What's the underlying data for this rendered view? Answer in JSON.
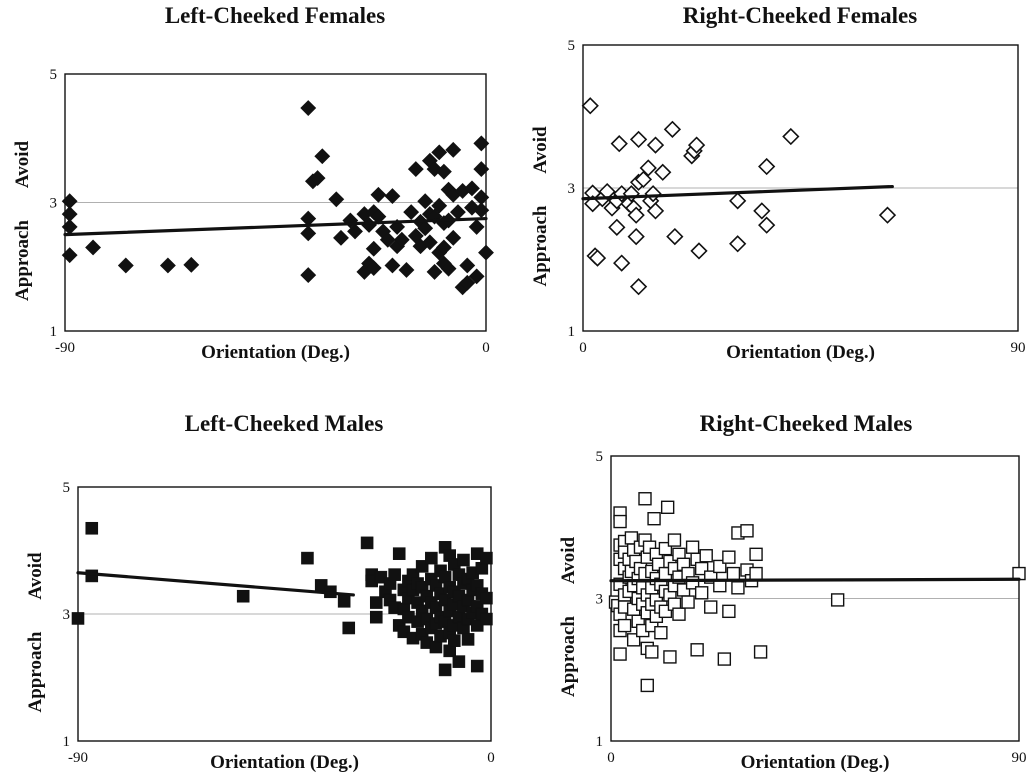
{
  "chart_data": [
    {
      "id": "lcf",
      "type": "scatter",
      "title": "Left-Cheeked Females",
      "xlabel": "Orientation (Deg.)",
      "ylabel_top": "Avoid",
      "ylabel_bottom": "Approach",
      "xlim": [
        -90,
        0
      ],
      "ylim": [
        1,
        5
      ],
      "x_ticks": [
        "-90",
        "0"
      ],
      "y_ticks": [
        "1",
        "3",
        "5"
      ],
      "gridlines_y": [
        3
      ],
      "marker": "diamond-filled",
      "trendline": {
        "x": [
          -90,
          0
        ],
        "y": [
          2.5,
          2.75
        ]
      },
      "points": [
        [
          -89,
          3.02
        ],
        [
          -89,
          2.82
        ],
        [
          -89,
          2.62
        ],
        [
          -89,
          2.18
        ],
        [
          -84,
          2.3
        ],
        [
          -77,
          2.02
        ],
        [
          -68,
          2.02
        ],
        [
          -63,
          2.03
        ],
        [
          -38,
          4.47
        ],
        [
          -38,
          2.75
        ],
        [
          -38,
          2.52
        ],
        [
          -38,
          1.87
        ],
        [
          -37,
          3.33
        ],
        [
          -36,
          3.38
        ],
        [
          -35,
          3.72
        ],
        [
          -32,
          3.05
        ],
        [
          -31,
          2.45
        ],
        [
          -29,
          2.72
        ],
        [
          -28,
          2.55
        ],
        [
          -26,
          1.92
        ],
        [
          -26,
          2.82
        ],
        [
          -25,
          2.05
        ],
        [
          -25,
          2.65
        ],
        [
          -24,
          2.85
        ],
        [
          -24,
          2.28
        ],
        [
          -24,
          1.98
        ],
        [
          -23,
          3.12
        ],
        [
          -23,
          2.78
        ],
        [
          -22,
          2.55
        ],
        [
          -21,
          2.42
        ],
        [
          -20,
          3.1
        ],
        [
          -20,
          2.02
        ],
        [
          -19,
          2.62
        ],
        [
          -19,
          2.32
        ],
        [
          -18,
          2.42
        ],
        [
          -17,
          1.95
        ],
        [
          -16,
          2.85
        ],
        [
          -15,
          3.52
        ],
        [
          -15,
          2.48
        ],
        [
          -14,
          2.32
        ],
        [
          -14,
          2.7
        ],
        [
          -13,
          2.6
        ],
        [
          -13,
          3.02
        ],
        [
          -12,
          2.38
        ],
        [
          -12,
          2.82
        ],
        [
          -12,
          3.65
        ],
        [
          -11,
          1.92
        ],
        [
          -11,
          2.78
        ],
        [
          -11,
          3.52
        ],
        [
          -10,
          2.22
        ],
        [
          -10,
          2.95
        ],
        [
          -10,
          3.78
        ],
        [
          -9,
          3.48
        ],
        [
          -9,
          2.68
        ],
        [
          -9,
          2.3
        ],
        [
          -9,
          2.05
        ],
        [
          -8,
          3.2
        ],
        [
          -8,
          2.72
        ],
        [
          -8,
          1.97
        ],
        [
          -7,
          3.82
        ],
        [
          -7,
          3.12
        ],
        [
          -7,
          2.45
        ],
        [
          -6,
          2.85
        ],
        [
          -5,
          1.68
        ],
        [
          -5,
          3.18
        ],
        [
          -4,
          1.75
        ],
        [
          -4,
          2.02
        ],
        [
          -3,
          2.92
        ],
        [
          -3,
          3.22
        ],
        [
          -2,
          1.85
        ],
        [
          -2,
          2.62
        ],
        [
          -1,
          3.52
        ],
        [
          -1,
          3.08
        ],
        [
          -1,
          3.92
        ],
        [
          -1,
          2.88
        ],
        [
          0,
          2.22
        ]
      ]
    },
    {
      "id": "rcf",
      "type": "scatter",
      "title": "Right-Cheeked Females",
      "xlabel": "Orientation (Deg.)",
      "ylabel_top": "Avoid",
      "ylabel_bottom": "Approach",
      "xlim": [
        0,
        90
      ],
      "ylim": [
        1,
        5
      ],
      "x_ticks": [
        "0",
        "90"
      ],
      "y_ticks": [
        "1",
        "3",
        "5"
      ],
      "gridlines_y": [
        3
      ],
      "marker": "diamond-open",
      "trendline": {
        "x": [
          0,
          64
        ],
        "y": [
          2.85,
          3.02
        ]
      },
      "points": [
        [
          1.5,
          4.15
        ],
        [
          2,
          2.93
        ],
        [
          2,
          2.78
        ],
        [
          2.5,
          2.05
        ],
        [
          3,
          2.02
        ],
        [
          4,
          2.85
        ],
        [
          5,
          2.95
        ],
        [
          6,
          2.72
        ],
        [
          7,
          2.45
        ],
        [
          7,
          2.82
        ],
        [
          7.5,
          3.62
        ],
        [
          8,
          2.92
        ],
        [
          8,
          1.95
        ],
        [
          9.5,
          2.78
        ],
        [
          10,
          2.92
        ],
        [
          10.5,
          2.72
        ],
        [
          11,
          2.62
        ],
        [
          11,
          2.32
        ],
        [
          11.5,
          3.68
        ],
        [
          11.5,
          3.08
        ],
        [
          11.5,
          1.62
        ],
        [
          12.5,
          3.12
        ],
        [
          13.5,
          3.28
        ],
        [
          14,
          2.82
        ],
        [
          14.5,
          2.92
        ],
        [
          15,
          2.68
        ],
        [
          15,
          3.6
        ],
        [
          16.5,
          3.22
        ],
        [
          18.5,
          3.82
        ],
        [
          19,
          2.32
        ],
        [
          22.5,
          3.45
        ],
        [
          23,
          3.52
        ],
        [
          23.5,
          3.6
        ],
        [
          24,
          2.12
        ],
        [
          32,
          2.82
        ],
        [
          32,
          2.22
        ],
        [
          37,
          2.68
        ],
        [
          38,
          2.48
        ],
        [
          38,
          3.3
        ],
        [
          43,
          3.72
        ],
        [
          63,
          2.62
        ]
      ]
    },
    {
      "id": "lcm",
      "type": "scatter",
      "title": "Left-Cheeked Males",
      "xlabel": "Orientation (Deg.)",
      "ylabel_top": "Avoid",
      "ylabel_bottom": "Approach",
      "xlim": [
        -90,
        0
      ],
      "ylim": [
        1,
        5
      ],
      "x_ticks": [
        "-90",
        "0"
      ],
      "y_ticks": [
        "1",
        "3",
        "5"
      ],
      "gridlines_y": [
        3
      ],
      "marker": "square-filled",
      "trendline": {
        "x": [
          -90,
          -30
        ],
        "y": [
          3.65,
          3.3
        ]
      },
      "points": [
        [
          -90,
          2.93
        ],
        [
          -87,
          4.35
        ],
        [
          -87,
          3.6
        ],
        [
          -54,
          3.28
        ],
        [
          -40,
          3.88
        ],
        [
          -37,
          3.45
        ],
        [
          -35,
          3.35
        ],
        [
          -32,
          3.2
        ],
        [
          -31,
          2.78
        ],
        [
          -27,
          4.12
        ],
        [
          -26,
          3.62
        ],
        [
          -26,
          3.52
        ],
        [
          -25,
          3.18
        ],
        [
          -25,
          2.95
        ],
        [
          -24,
          3.58
        ],
        [
          -23,
          3.35
        ],
        [
          -22,
          3.48
        ],
        [
          -22,
          3.22
        ],
        [
          -21,
          3.62
        ],
        [
          -21,
          3.1
        ],
        [
          -20,
          3.95
        ],
        [
          -20,
          2.82
        ],
        [
          -19,
          3.38
        ],
        [
          -19,
          3.08
        ],
        [
          -19,
          2.72
        ],
        [
          -18,
          3.52
        ],
        [
          -18,
          3.25
        ],
        [
          -18,
          2.95
        ],
        [
          -17,
          3.62
        ],
        [
          -17,
          3.38
        ],
        [
          -17,
          2.62
        ],
        [
          -16,
          3.48
        ],
        [
          -16,
          3.18
        ],
        [
          -16,
          2.88
        ],
        [
          -15,
          3.75
        ],
        [
          -15,
          3.42
        ],
        [
          -15,
          3.05
        ],
        [
          -15,
          2.68
        ],
        [
          -14,
          3.28
        ],
        [
          -14,
          2.92
        ],
        [
          -14,
          2.55
        ],
        [
          -13,
          3.88
        ],
        [
          -13,
          3.55
        ],
        [
          -13,
          3.18
        ],
        [
          -13,
          2.78
        ],
        [
          -12,
          3.45
        ],
        [
          -12,
          3.1
        ],
        [
          -12,
          2.85
        ],
        [
          -12,
          2.48
        ],
        [
          -11,
          3.68
        ],
        [
          -11,
          3.32
        ],
        [
          -11,
          2.95
        ],
        [
          -11,
          2.65
        ],
        [
          -10,
          4.05
        ],
        [
          -10,
          3.58
        ],
        [
          -10,
          3.22
        ],
        [
          -10,
          2.88
        ],
        [
          -10,
          2.12
        ],
        [
          -9,
          3.92
        ],
        [
          -9,
          3.42
        ],
        [
          -9,
          3.05
        ],
        [
          -9,
          2.7
        ],
        [
          -9,
          2.42
        ],
        [
          -8,
          3.78
        ],
        [
          -8,
          3.35
        ],
        [
          -8,
          3.15
        ],
        [
          -8,
          2.82
        ],
        [
          -8,
          2.58
        ],
        [
          -7,
          3.62
        ],
        [
          -7,
          3.28
        ],
        [
          -7,
          2.95
        ],
        [
          -7,
          2.25
        ],
        [
          -6,
          3.85
        ],
        [
          -6,
          3.48
        ],
        [
          -6,
          3.12
        ],
        [
          -6,
          2.78
        ],
        [
          -5,
          3.55
        ],
        [
          -5,
          3.22
        ],
        [
          -5,
          2.92
        ],
        [
          -5,
          2.6
        ],
        [
          -4,
          3.65
        ],
        [
          -4,
          3.38
        ],
        [
          -4,
          3.02
        ],
        [
          -3,
          3.95
        ],
        [
          -3,
          3.45
        ],
        [
          -3,
          3.12
        ],
        [
          -3,
          2.82
        ],
        [
          -3,
          2.18
        ],
        [
          -2,
          3.72
        ],
        [
          -2,
          3.32
        ],
        [
          -2,
          3.0
        ],
        [
          -1,
          3.88
        ],
        [
          -1,
          3.25
        ],
        [
          -1,
          2.92
        ]
      ]
    },
    {
      "id": "rcm",
      "type": "scatter",
      "title": "Right-Cheeked Males",
      "xlabel": "Orientation (Deg.)",
      "ylabel_top": "Avoid",
      "ylabel_bottom": "Approach",
      "xlim": [
        0,
        90
      ],
      "ylim": [
        1,
        5
      ],
      "x_ticks": [
        "0",
        "90"
      ],
      "y_ticks": [
        "1",
        "3",
        "5"
      ],
      "gridlines_y": [
        3
      ],
      "marker": "square-open",
      "trendline": {
        "x": [
          0,
          90
        ],
        "y": [
          3.25,
          3.27
        ]
      },
      "points": [
        [
          1,
          2.95
        ],
        [
          1.5,
          2.9
        ],
        [
          2,
          4.2
        ],
        [
          2,
          4.08
        ],
        [
          2,
          3.75
        ],
        [
          2,
          3.55
        ],
        [
          2,
          3.2
        ],
        [
          2,
          2.78
        ],
        [
          2,
          2.55
        ],
        [
          2,
          2.22
        ],
        [
          3,
          3.8
        ],
        [
          3,
          3.65
        ],
        [
          3,
          3.42
        ],
        [
          3,
          3.05
        ],
        [
          3,
          2.88
        ],
        [
          3,
          2.62
        ],
        [
          4,
          3.55
        ],
        [
          4,
          3.3
        ],
        [
          4,
          3.1
        ],
        [
          4.5,
          3.85
        ],
        [
          4.5,
          3.38
        ],
        [
          5,
          3.68
        ],
        [
          5,
          3.18
        ],
        [
          5,
          2.85
        ],
        [
          5,
          2.42
        ],
        [
          5.5,
          3.52
        ],
        [
          6,
          3.28
        ],
        [
          6,
          3.0
        ],
        [
          6,
          2.68
        ],
        [
          6.5,
          3.72
        ],
        [
          6.5,
          3.42
        ],
        [
          7,
          3.15
        ],
        [
          7,
          2.92
        ],
        [
          7,
          2.55
        ],
        [
          7.5,
          3.82
        ],
        [
          7.5,
          3.35
        ],
        [
          7.5,
          4.4
        ],
        [
          8,
          3.58
        ],
        [
          8,
          3.05
        ],
        [
          8,
          2.8
        ],
        [
          8,
          2.3
        ],
        [
          8,
          1.78
        ],
        [
          8.5,
          3.72
        ],
        [
          9,
          3.38
        ],
        [
          9,
          3.15
        ],
        [
          9,
          2.92
        ],
        [
          9,
          2.62
        ],
        [
          9,
          2.25
        ],
        [
          9.5,
          4.12
        ],
        [
          10,
          3.62
        ],
        [
          10,
          3.28
        ],
        [
          10,
          2.98
        ],
        [
          10,
          2.75
        ],
        [
          10.5,
          3.48
        ],
        [
          11,
          3.2
        ],
        [
          11,
          2.88
        ],
        [
          11,
          2.52
        ],
        [
          12,
          3.7
        ],
        [
          12,
          3.35
        ],
        [
          12,
          3.1
        ],
        [
          12,
          2.82
        ],
        [
          12.5,
          4.28
        ],
        [
          13,
          3.52
        ],
        [
          13,
          3.05
        ],
        [
          13,
          2.18
        ],
        [
          14,
          3.82
        ],
        [
          14,
          3.42
        ],
        [
          14,
          3.18
        ],
        [
          14,
          2.92
        ],
        [
          15,
          3.62
        ],
        [
          15,
          3.3
        ],
        [
          15,
          2.78
        ],
        [
          16,
          3.48
        ],
        [
          16,
          3.12
        ],
        [
          17,
          3.35
        ],
        [
          17,
          2.95
        ],
        [
          18,
          3.72
        ],
        [
          18,
          3.22
        ],
        [
          19,
          3.55
        ],
        [
          19,
          2.28
        ],
        [
          20,
          3.42
        ],
        [
          20,
          3.08
        ],
        [
          21,
          3.6
        ],
        [
          22,
          3.3
        ],
        [
          22,
          2.88
        ],
        [
          24,
          3.45
        ],
        [
          24,
          3.18
        ],
        [
          25,
          2.15
        ],
        [
          26,
          3.58
        ],
        [
          26,
          2.82
        ],
        [
          27,
          3.35
        ],
        [
          28,
          3.92
        ],
        [
          28,
          3.15
        ],
        [
          30,
          3.95
        ],
        [
          30,
          3.4
        ],
        [
          31,
          3.25
        ],
        [
          32,
          3.62
        ],
        [
          32,
          3.35
        ],
        [
          33,
          2.25
        ],
        [
          50,
          2.98
        ],
        [
          90,
          3.35
        ]
      ]
    }
  ]
}
